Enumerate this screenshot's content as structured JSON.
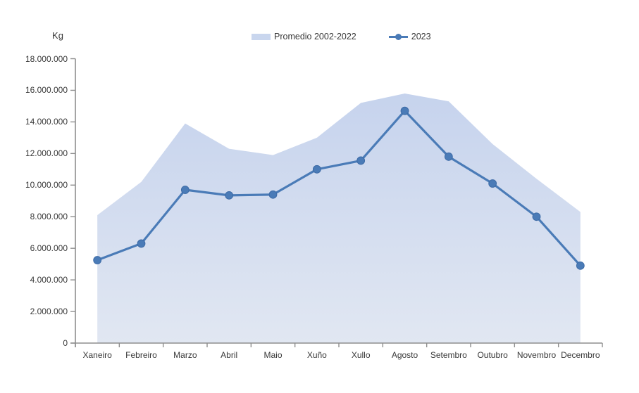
{
  "chart_data": {
    "type": "combo",
    "title": "",
    "y_axis_title": "Kg",
    "categories": [
      "Xaneiro",
      "Febreiro",
      "Marzo",
      "Abril",
      "Maio",
      "Xuño",
      "Xullo",
      "Agosto",
      "Setembro",
      "Outubro",
      "Novembro",
      "Decembro"
    ],
    "series": [
      {
        "name": "Promedio 2002-2022",
        "type": "area",
        "color_top": "#c6d3ed",
        "color_bottom": "#e1e7f2",
        "legend_swatch_color": "#c9d6ee",
        "values": [
          8100000,
          10200000,
          13900000,
          12300000,
          11900000,
          13000000,
          15200000,
          15800000,
          15300000,
          12600000,
          10400000,
          8300000
        ]
      },
      {
        "name": "2023",
        "type": "line",
        "color": "#4a7bb7",
        "marker": "circle",
        "marker_border_color": "#3d6ba6",
        "values": [
          5250000,
          6300000,
          9700000,
          9350000,
          9400000,
          11000000,
          11550000,
          14700000,
          11800000,
          10100000,
          8000000,
          4900000
        ]
      }
    ],
    "y_axis": {
      "min": 0,
      "max": 18000000,
      "step": 2000000,
      "tick_labels": [
        "0",
        "2.000.000",
        "4.000.000",
        "6.000.000",
        "8.000.000",
        "10.000.000",
        "12.000.000",
        "14.000.000",
        "16.000.000",
        "18.000.000"
      ]
    },
    "legend_position": "top-center",
    "grid": false,
    "axis_color": "#8e8e8e",
    "text_color": "#383838"
  }
}
